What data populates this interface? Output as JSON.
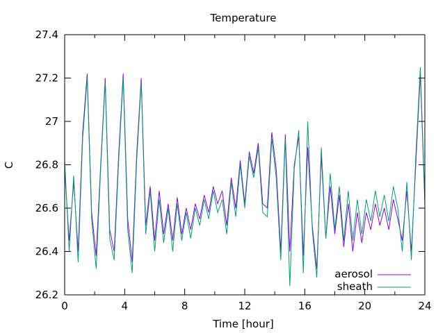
{
  "chart_data": {
    "type": "line",
    "title": "Temperature",
    "xlabel": "Time [hour]",
    "ylabel": "C",
    "xlim": [
      0,
      24
    ],
    "ylim": [
      26.2,
      27.4
    ],
    "x_ticks": [
      0,
      4,
      8,
      12,
      16,
      20,
      24
    ],
    "x_tick_labels": [
      "0",
      "4",
      "8",
      "12",
      "16",
      "20",
      "24"
    ],
    "y_ticks": [
      26.2,
      26.4,
      26.6,
      26.8,
      27.0,
      27.2,
      27.4
    ],
    "y_tick_labels": [
      "26.2",
      "26.4",
      "26.6",
      "26.8",
      "27",
      "27.2",
      "27.4"
    ],
    "grid": false,
    "legend": "bottom-right",
    "x_hours": [
      0,
      0.3,
      0.6,
      0.9,
      1.2,
      1.5,
      1.8,
      2.1,
      2.4,
      2.7,
      3.0,
      3.3,
      3.6,
      3.9,
      4.2,
      4.5,
      4.8,
      5.1,
      5.4,
      5.7,
      6.0,
      6.3,
      6.6,
      6.9,
      7.2,
      7.5,
      7.8,
      8.1,
      8.4,
      8.7,
      9.0,
      9.3,
      9.6,
      9.9,
      10.2,
      10.5,
      10.8,
      11.1,
      11.4,
      11.7,
      12.0,
      12.3,
      12.6,
      12.9,
      13.2,
      13.5,
      13.8,
      14.1,
      14.4,
      14.7,
      15.0,
      15.3,
      15.6,
      15.9,
      16.2,
      16.5,
      16.8,
      17.1,
      17.4,
      17.7,
      18.0,
      18.3,
      18.6,
      18.9,
      19.2,
      19.5,
      19.8,
      20.1,
      20.4,
      20.7,
      21.0,
      21.3,
      21.6,
      21.9,
      22.2,
      22.5,
      22.8,
      23.1,
      23.4,
      23.7,
      24.0
    ],
    "series": [
      {
        "name": "aerosol",
        "color": "#9400d3",
        "values": [
          26.78,
          26.45,
          26.72,
          26.4,
          26.95,
          27.22,
          26.58,
          26.38,
          26.8,
          27.2,
          26.5,
          26.4,
          26.85,
          27.22,
          26.55,
          26.35,
          26.85,
          27.2,
          26.52,
          26.7,
          26.45,
          26.68,
          26.48,
          26.62,
          26.45,
          26.65,
          26.48,
          26.6,
          26.5,
          26.62,
          26.55,
          26.66,
          26.58,
          26.7,
          26.62,
          26.68,
          26.52,
          26.74,
          26.6,
          26.82,
          26.62,
          26.86,
          26.76,
          26.9,
          26.62,
          26.6,
          26.95,
          26.78,
          26.4,
          26.94,
          26.4,
          26.8,
          26.93,
          26.38,
          26.88,
          26.52,
          26.32,
          26.84,
          26.46,
          26.7,
          26.48,
          26.66,
          26.42,
          26.62,
          26.4,
          26.58,
          26.44,
          26.58,
          26.5,
          26.62,
          26.52,
          26.6,
          26.5,
          26.64,
          26.55,
          26.45,
          26.68,
          26.4,
          26.8,
          27.22,
          26.62
        ]
      },
      {
        "name": "sheath",
        "color": "#009e73",
        "values": [
          26.82,
          26.4,
          26.75,
          26.35,
          26.92,
          27.2,
          26.55,
          26.32,
          26.78,
          27.18,
          26.46,
          26.36,
          26.82,
          27.2,
          26.5,
          26.3,
          26.82,
          27.18,
          26.48,
          26.68,
          26.4,
          26.64,
          26.44,
          26.6,
          26.4,
          26.62,
          26.45,
          26.58,
          26.46,
          26.6,
          26.52,
          26.64,
          26.55,
          26.68,
          26.58,
          26.64,
          26.48,
          26.72,
          26.56,
          26.8,
          26.6,
          26.84,
          26.74,
          26.88,
          26.58,
          26.56,
          26.92,
          26.74,
          26.36,
          26.92,
          26.24,
          26.78,
          26.96,
          26.3,
          27.0,
          26.5,
          26.28,
          26.88,
          26.46,
          26.76,
          26.5,
          26.7,
          26.45,
          26.68,
          26.45,
          26.64,
          26.48,
          26.64,
          26.54,
          26.68,
          26.56,
          26.66,
          26.54,
          26.7,
          26.6,
          26.4,
          26.72,
          26.36,
          26.84,
          27.25,
          26.64
        ]
      }
    ]
  }
}
